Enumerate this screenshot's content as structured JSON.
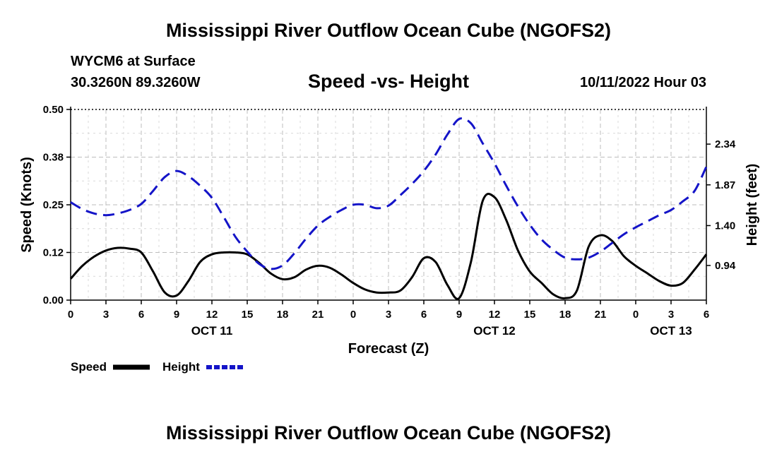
{
  "page": {
    "title": "Mississippi River Outflow Ocean Cube (NGOFS2)",
    "bottom_title": "Mississippi River Outflow Ocean Cube (NGOFS2)",
    "station_line": "WYCM6 at Surface",
    "coords_line": "30.3260N  89.3260W",
    "subtitle": "Speed -vs- Height",
    "timestamp": "10/11/2022 Hour 03"
  },
  "chart_data": {
    "type": "line",
    "title": "Speed -vs- Height",
    "xlabel": "Forecast (Z)",
    "ylabel": "Speed (Knots)",
    "y2label": "Height (feet)",
    "grid": true,
    "x_range": [
      0,
      54
    ],
    "ylim": [
      0,
      0.5
    ],
    "y2lim": [
      0.54,
      2.74
    ],
    "x_ticks": [
      {
        "x": 0,
        "label": "0"
      },
      {
        "x": 3,
        "label": "3"
      },
      {
        "x": 6,
        "label": "6"
      },
      {
        "x": 9,
        "label": "9"
      },
      {
        "x": 12,
        "label": "12"
      },
      {
        "x": 15,
        "label": "15"
      },
      {
        "x": 18,
        "label": "18"
      },
      {
        "x": 21,
        "label": "21"
      },
      {
        "x": 24,
        "label": "0"
      },
      {
        "x": 27,
        "label": "3"
      },
      {
        "x": 30,
        "label": "6"
      },
      {
        "x": 33,
        "label": "9"
      },
      {
        "x": 36,
        "label": "12"
      },
      {
        "x": 39,
        "label": "15"
      },
      {
        "x": 42,
        "label": "18"
      },
      {
        "x": 45,
        "label": "21"
      },
      {
        "x": 48,
        "label": "0"
      },
      {
        "x": 51,
        "label": "3"
      },
      {
        "x": 54,
        "label": "6"
      }
    ],
    "date_labels": [
      {
        "x": 12,
        "label": "OCT 11"
      },
      {
        "x": 36,
        "label": "OCT 12"
      },
      {
        "x": 51,
        "label": "OCT 13"
      }
    ],
    "y_ticks": [
      {
        "y": 0.0,
        "label": "0.00"
      },
      {
        "y": 0.125,
        "label": "0.12"
      },
      {
        "y": 0.25,
        "label": "0.25"
      },
      {
        "y": 0.375,
        "label": "0.38"
      },
      {
        "y": 0.5,
        "label": "0.50"
      }
    ],
    "y2_ticks": [
      {
        "y": 0.94,
        "label": "0.94"
      },
      {
        "y": 1.4,
        "label": "1.40"
      },
      {
        "y": 1.87,
        "label": "1.87"
      },
      {
        "y": 2.34,
        "label": "2.34"
      }
    ],
    "series": [
      {
        "name": "Speed",
        "axis": "left",
        "color": "#000000",
        "dash": "solid",
        "x": [
          0,
          1,
          2,
          3,
          4,
          5,
          6,
          7,
          8,
          9,
          10,
          11,
          12,
          13,
          14,
          15,
          16,
          17,
          18,
          19,
          20,
          21,
          22,
          23,
          24,
          25,
          26,
          27,
          28,
          29,
          30,
          31,
          32,
          33,
          34,
          35,
          36,
          37,
          38,
          39,
          40,
          41,
          42,
          43,
          44,
          45,
          46,
          47,
          48,
          49,
          50,
          51,
          52,
          53,
          54
        ],
        "y": [
          0.056,
          0.09,
          0.114,
          0.13,
          0.137,
          0.135,
          0.125,
          0.075,
          0.02,
          0.012,
          0.05,
          0.1,
          0.12,
          0.125,
          0.125,
          0.12,
          0.098,
          0.07,
          0.055,
          0.06,
          0.08,
          0.09,
          0.085,
          0.067,
          0.045,
          0.028,
          0.02,
          0.02,
          0.025,
          0.06,
          0.11,
          0.1,
          0.04,
          0.005,
          0.1,
          0.26,
          0.27,
          0.21,
          0.13,
          0.075,
          0.045,
          0.015,
          0.005,
          0.025,
          0.14,
          0.17,
          0.155,
          0.115,
          0.09,
          0.07,
          0.05,
          0.038,
          0.045,
          0.08,
          0.12
        ]
      },
      {
        "name": "Height",
        "axis": "right",
        "color": "#1414c8",
        "dash": "dashed",
        "x": [
          0,
          1,
          2,
          3,
          4,
          5,
          6,
          7,
          8,
          9,
          10,
          11,
          12,
          13,
          14,
          15,
          16,
          17,
          18,
          19,
          20,
          21,
          22,
          23,
          24,
          25,
          26,
          27,
          28,
          29,
          30,
          31,
          32,
          33,
          34,
          35,
          36,
          37,
          38,
          39,
          40,
          41,
          42,
          43,
          44,
          45,
          46,
          47,
          48,
          49,
          50,
          51,
          52,
          53,
          54
        ],
        "y": [
          1.67,
          1.59,
          1.54,
          1.52,
          1.54,
          1.58,
          1.65,
          1.8,
          1.96,
          2.03,
          1.97,
          1.86,
          1.72,
          1.5,
          1.27,
          1.1,
          0.96,
          0.9,
          0.94,
          1.08,
          1.25,
          1.4,
          1.5,
          1.58,
          1.64,
          1.64,
          1.6,
          1.63,
          1.75,
          1.88,
          2.03,
          2.22,
          2.45,
          2.63,
          2.58,
          2.35,
          2.12,
          1.86,
          1.62,
          1.41,
          1.24,
          1.12,
          1.03,
          1.01,
          1.03,
          1.1,
          1.2,
          1.3,
          1.38,
          1.45,
          1.52,
          1.58,
          1.68,
          1.8,
          2.08
        ]
      }
    ]
  },
  "legend": {
    "speed_label": "Speed",
    "height_label": "Height",
    "speed_color": "#000000",
    "height_color": "#1414c8"
  }
}
